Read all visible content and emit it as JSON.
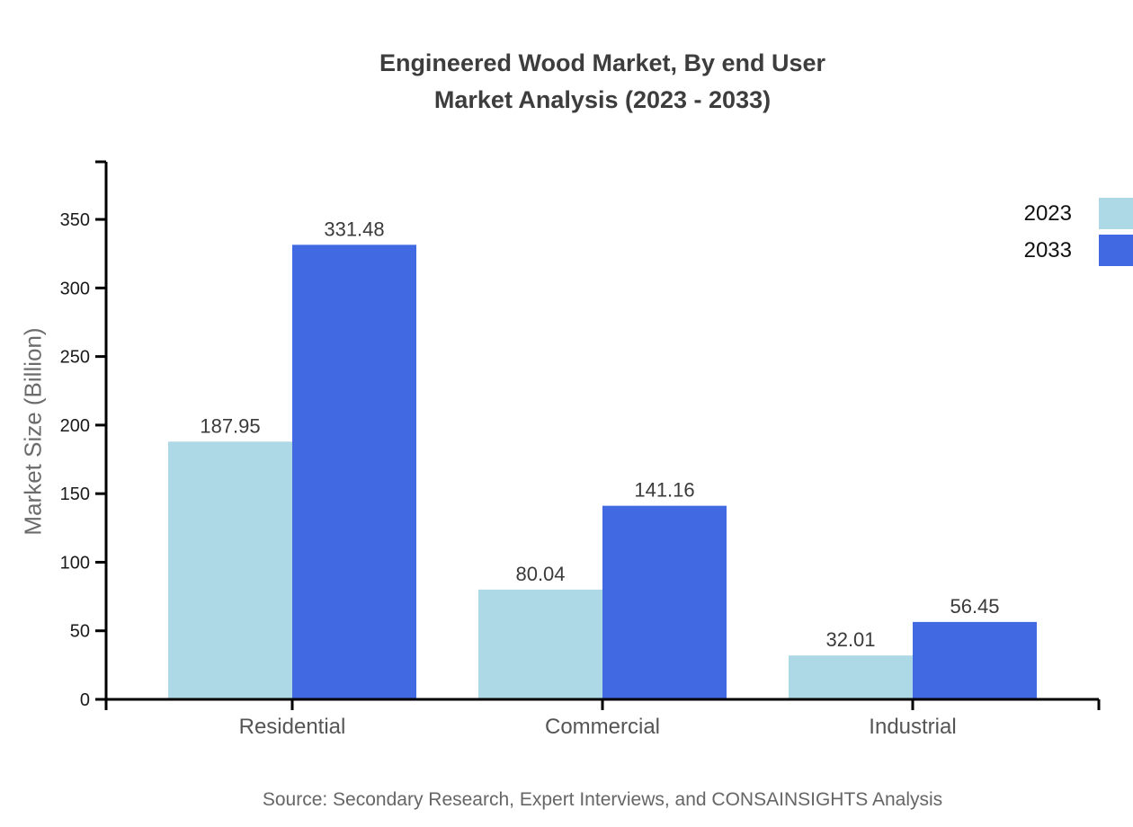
{
  "title": {
    "line1": "Engineered Wood Market, By end User",
    "line2": "Market Analysis (2023 - 2033)"
  },
  "chart_data": {
    "type": "bar",
    "title": "Engineered Wood Market, By end User Market Analysis (2023 - 2033)",
    "categories": [
      "Residential",
      "Commercial",
      "Industrial"
    ],
    "series": [
      {
        "name": "2023",
        "color": "#ADD8E6",
        "values": [
          187.95,
          80.04,
          32.01
        ],
        "labels": [
          "187.95",
          "80.04",
          "32.01"
        ]
      },
      {
        "name": "2033",
        "color": "#4169E1",
        "values": [
          331.48,
          141.16,
          56.45
        ],
        "labels": [
          "331.48",
          "141.16",
          "56.45"
        ]
      }
    ],
    "xlabel": "",
    "ylabel": "Market Size (Billion)",
    "ylim": [
      0,
      392
    ],
    "yticks": [
      0,
      50,
      100,
      150,
      200,
      250,
      300,
      350
    ],
    "grid": false,
    "legend_position": "top-right",
    "value_labels": true
  },
  "legend": {
    "items": [
      {
        "label": "2023",
        "color": "#ADD8E6"
      },
      {
        "label": "2033",
        "color": "#4169E1"
      }
    ]
  },
  "footer": {
    "source": "Source: Secondary Research, Expert Interviews, and CONSAINSIGHTS Analysis"
  },
  "colors": {
    "background": "#ffffff",
    "series_2023": "#ADD8E6",
    "series_2033": "#4169E1",
    "title_text": "#3d3d3d",
    "axis_line": "#000000",
    "tick_label": "#1a1a1a",
    "category_label": "#555555",
    "value_label": "#3a3a3a",
    "axis_title": "#6b6b6b",
    "source_text": "#666666"
  }
}
